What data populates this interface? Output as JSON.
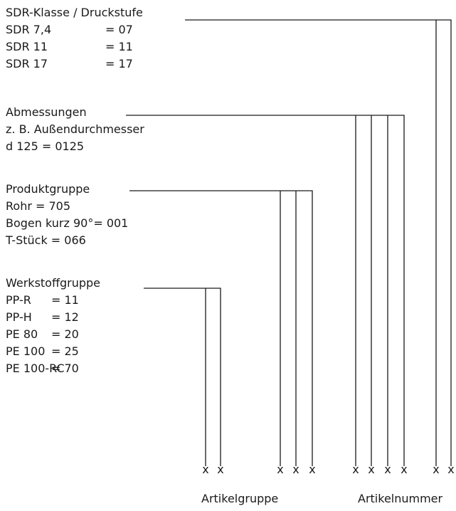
{
  "sdr": {
    "heading": "SDR-Klasse / Druckstufe",
    "rows": [
      {
        "key": "SDR 7,4",
        "val": "= 07"
      },
      {
        "key": "SDR 11",
        "val": "= 11"
      },
      {
        "key": "SDR 17",
        "val": "= 17"
      }
    ]
  },
  "abm": {
    "heading": "Abmessungen",
    "lines": [
      "z. B. Außendurchmesser",
      "d 125 = 0125"
    ]
  },
  "prod": {
    "heading": "Produktgruppe",
    "lines": [
      "Rohr = 705",
      "Bogen kurz 90°= 001",
      "T-Stück = 066"
    ]
  },
  "werk": {
    "heading": "Werkstoffgruppe",
    "rows": [
      {
        "key": "PP-R",
        "val": "= 11"
      },
      {
        "key": "PP-H",
        "val": "= 12"
      },
      {
        "key": "PE 80",
        "val": "= 20"
      },
      {
        "key": "PE 100",
        "val": "= 25"
      },
      {
        "key": "PE 100-RC",
        "val": "= 70"
      }
    ]
  },
  "marks": {
    "x": "x"
  },
  "captions": {
    "left": "Artikelgruppe",
    "right": "Artikelnummer"
  }
}
